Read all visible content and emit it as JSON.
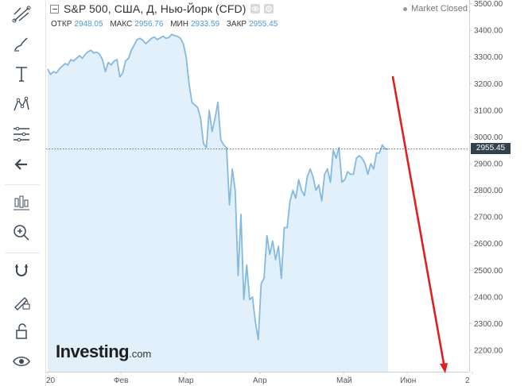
{
  "header": {
    "title": "S&P 500, США, Д, Нью-Йорк (CFD)",
    "ohlc": [
      {
        "label": "ОТКР",
        "value": "2948.05"
      },
      {
        "label": "МАКС",
        "value": "2956.76"
      },
      {
        "label": "МИН",
        "value": "2933.59"
      },
      {
        "label": "ЗАКР",
        "value": "2955.45"
      }
    ],
    "status": "Market Closed"
  },
  "toolbar": {
    "icons": [
      "trend-lines-icon",
      "brush-icon",
      "text-icon",
      "pattern-icon",
      "fibonacci-icon",
      "back-arrow-icon",
      "indicators-icon",
      "zoom-icon",
      "magnet-icon",
      "lock-drawing-icon",
      "unlock-icon",
      "eye-icon"
    ]
  },
  "watermark": {
    "brand": "Investing",
    "domain": ".com"
  },
  "price_tag": "2955.45",
  "chart_data": {
    "type": "area",
    "ylim": [
      2100,
      3500
    ],
    "y_ticks": [
      "3500.00",
      "3400.00",
      "3300.00",
      "3200.00",
      "3100.00",
      "3000.00",
      "2900.00",
      "2800.00",
      "2700.00",
      "2600.00",
      "2500.00",
      "2400.00",
      "2300.00",
      "2200.00"
    ],
    "x_ticks": [
      "20",
      "Фев",
      "Мар",
      "Апр",
      "Май",
      "Июн",
      "2"
    ],
    "series": [
      {
        "values": [
          3255,
          3235,
          3245,
          3240,
          3255,
          3265,
          3275,
          3270,
          3290,
          3285,
          3295,
          3305,
          3295,
          3310,
          3320,
          3325,
          3315,
          3318,
          3310,
          3290,
          3245,
          3280,
          3270,
          3285,
          3290,
          3225,
          3240,
          3285,
          3295,
          3325,
          3345,
          3365,
          3370,
          3362,
          3350,
          3360,
          3370,
          3375,
          3365,
          3372,
          3378,
          3370,
          3373,
          3385,
          3380,
          3378,
          3370,
          3350,
          3300,
          3200,
          3130,
          3120,
          3110,
          3070,
          2975,
          2960,
          3100,
          3020,
          3070,
          3130,
          2990,
          2970,
          2960,
          2745,
          2880,
          2800,
          2480,
          2710,
          2390,
          2520,
          2390,
          2400,
          2305,
          2240,
          2450,
          2470,
          2630,
          2560,
          2610,
          2540,
          2590,
          2470,
          2660,
          2660,
          2760,
          2800,
          2770,
          2840,
          2800,
          2780,
          2850,
          2880,
          2850,
          2800,
          2820,
          2760,
          2860,
          2880,
          2830,
          2950,
          2920,
          2960,
          2830,
          2840,
          2870,
          2860,
          2860,
          2920,
          2930,
          2920,
          2900,
          2860,
          2900,
          2880,
          2940,
          2940,
          2970,
          2955,
          2955
        ]
      }
    ],
    "last_price": 2955.45,
    "grid": false,
    "annotation": "red arrow pointing down"
  }
}
